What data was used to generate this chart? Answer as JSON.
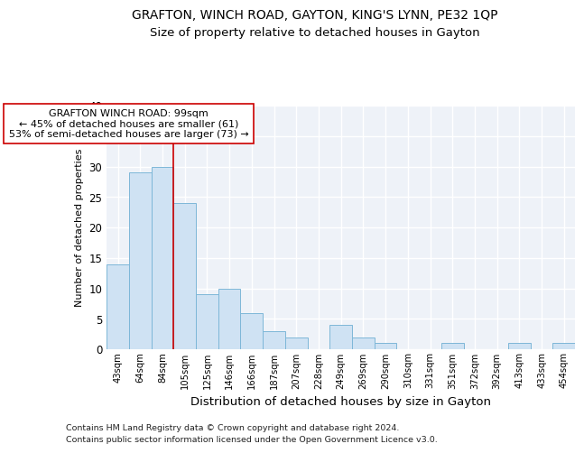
{
  "title1": "GRAFTON, WINCH ROAD, GAYTON, KING'S LYNN, PE32 1QP",
  "title2": "Size of property relative to detached houses in Gayton",
  "xlabel": "Distribution of detached houses by size in Gayton",
  "ylabel": "Number of detached properties",
  "categories": [
    "43sqm",
    "64sqm",
    "84sqm",
    "105sqm",
    "125sqm",
    "146sqm",
    "166sqm",
    "187sqm",
    "207sqm",
    "228sqm",
    "249sqm",
    "269sqm",
    "290sqm",
    "310sqm",
    "331sqm",
    "351sqm",
    "372sqm",
    "392sqm",
    "413sqm",
    "433sqm",
    "454sqm"
  ],
  "values": [
    14,
    29,
    30,
    24,
    9,
    10,
    6,
    3,
    2,
    0,
    4,
    2,
    1,
    0,
    0,
    1,
    0,
    0,
    1,
    0,
    1
  ],
  "bar_color": "#cfe2f3",
  "bar_edge_color": "#7db7d8",
  "ylim": [
    0,
    40
  ],
  "yticks": [
    0,
    5,
    10,
    15,
    20,
    25,
    30,
    35,
    40
  ],
  "vline_x": 3.0,
  "vline_color": "#cc0000",
  "annotation_title": "GRAFTON WINCH ROAD: 99sqm",
  "annotation_line1": "← 45% of detached houses are smaller (61)",
  "annotation_line2": "53% of semi-detached houses are larger (73) →",
  "annotation_box_color": "#ffffff",
  "annotation_box_edge": "#cc0000",
  "footer1": "Contains HM Land Registry data © Crown copyright and database right 2024.",
  "footer2": "Contains public sector information licensed under the Open Government Licence v3.0.",
  "bg_color": "#eef2f8",
  "grid_color": "#ffffff"
}
